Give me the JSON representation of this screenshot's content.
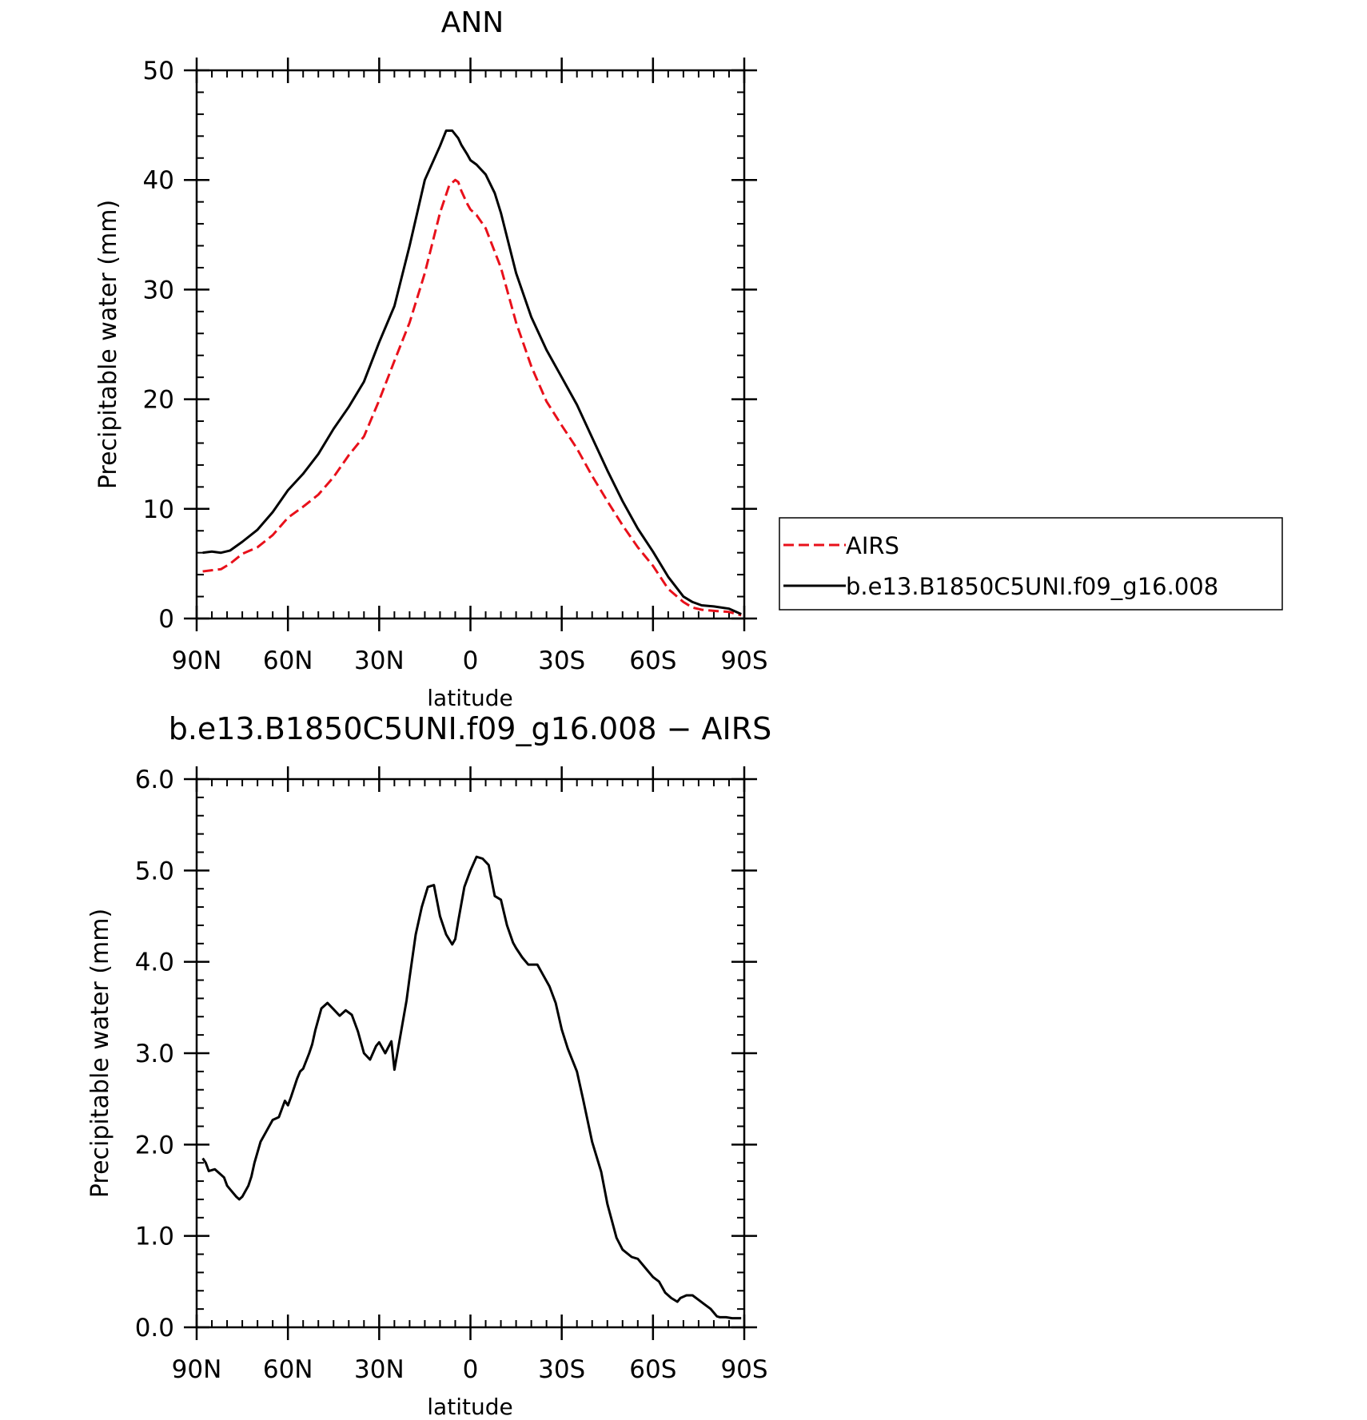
{
  "chart_data": [
    {
      "type": "line",
      "title": "ANN",
      "xlabel": "latitude",
      "ylabel": "Precipitable water (mm)",
      "xlim": [
        90,
        -90
      ],
      "ylim": [
        0,
        50
      ],
      "xticks": [
        90,
        60,
        30,
        0,
        -30,
        -60,
        -90
      ],
      "xtick_labels": [
        "90N",
        "60N",
        "30N",
        "0",
        "30S",
        "60S",
        "90S"
      ],
      "yticks": [
        0,
        10,
        20,
        30,
        40,
        50
      ],
      "ytick_labels": [
        "0",
        "10",
        "20",
        "30",
        "40",
        "50"
      ],
      "grid": false,
      "legend": {
        "placement": "right, outside plot",
        "entries": [
          "AIRS",
          "b.e13.B1850C5UNI.f09_g16.008"
        ]
      },
      "series": [
        {
          "name": "AIRS",
          "color": "#e8101a",
          "dash": true,
          "x": [
            88,
            85,
            82,
            79,
            75,
            70,
            65,
            60,
            55,
            50,
            45,
            40,
            35,
            30,
            25,
            20,
            15,
            10,
            7,
            5,
            4,
            3,
            1,
            0,
            -2,
            -5,
            -10,
            -15,
            -20,
            -25,
            -30,
            -35,
            -40,
            -45,
            -50,
            -55,
            -60,
            -65,
            -70,
            -73,
            -76,
            -80,
            -85,
            -89
          ],
          "values": [
            4.3,
            4.4,
            4.5,
            5.0,
            5.9,
            6.5,
            7.6,
            9.2,
            10.2,
            11.3,
            12.9,
            14.9,
            16.6,
            19.9,
            23.5,
            27.0,
            31.5,
            37.0,
            39.5,
            40.0,
            39.8,
            39.0,
            37.8,
            37.3,
            36.8,
            35.6,
            32.0,
            27.0,
            23.0,
            19.8,
            17.6,
            15.5,
            13.0,
            10.7,
            8.5,
            6.5,
            4.8,
            2.7,
            1.5,
            1.0,
            0.8,
            0.7,
            0.6,
            0.3
          ]
        },
        {
          "name": "b.e13.B1850C5UNI.f09_g16.008",
          "color": "#000000",
          "dash": false,
          "x": [
            88,
            85,
            82,
            79,
            75,
            70,
            65,
            60,
            55,
            50,
            45,
            40,
            35,
            30,
            25,
            20,
            15,
            10,
            8,
            6,
            4,
            3,
            1,
            0,
            -2,
            -5,
            -8,
            -10,
            -15,
            -20,
            -25,
            -30,
            -35,
            -40,
            -45,
            -50,
            -55,
            -60,
            -65,
            -70,
            -73,
            -76,
            -80,
            -85,
            -89
          ],
          "values": [
            6.0,
            6.1,
            6.0,
            6.2,
            7.0,
            8.1,
            9.7,
            11.7,
            13.2,
            15.0,
            17.3,
            19.3,
            21.6,
            25.2,
            28.5,
            34.0,
            40.0,
            43.1,
            44.5,
            44.5,
            43.8,
            43.2,
            42.3,
            41.8,
            41.4,
            40.5,
            38.8,
            37.0,
            31.5,
            27.5,
            24.5,
            22.0,
            19.5,
            16.5,
            13.5,
            10.7,
            8.2,
            6.1,
            3.8,
            2.0,
            1.5,
            1.2,
            1.1,
            0.9,
            0.4
          ]
        }
      ]
    },
    {
      "type": "line",
      "title": "b.e13.B1850C5UNI.f09_g16.008 − AIRS",
      "xlabel": "latitude",
      "ylabel": "Precipitable water (mm)",
      "xlim": [
        90,
        -90
      ],
      "ylim": [
        0,
        6
      ],
      "xticks": [
        90,
        60,
        30,
        0,
        -30,
        -60,
        -90
      ],
      "xtick_labels": [
        "90N",
        "60N",
        "30N",
        "0",
        "30S",
        "60S",
        "90S"
      ],
      "yticks": [
        0,
        1,
        2,
        3,
        4,
        5,
        6
      ],
      "ytick_labels": [
        "0.0",
        "1.0",
        "2.0",
        "3.0",
        "4.0",
        "5.0",
        "6.0"
      ],
      "grid": false,
      "series": [
        {
          "color": "#000000",
          "dash": false,
          "x": [
            88,
            87,
            86,
            85,
            84,
            81,
            80,
            79,
            77,
            76,
            75,
            73,
            72,
            71,
            69,
            67,
            65,
            63,
            61,
            60,
            59,
            57,
            56,
            55,
            53,
            52,
            51,
            49,
            47,
            45,
            43,
            41,
            39,
            37,
            35,
            33,
            31,
            30,
            28,
            26,
            25,
            23,
            21,
            20,
            18,
            16,
            14,
            12,
            10,
            8,
            6,
            5,
            4,
            2,
            0,
            -2,
            -4,
            -6,
            -8,
            -10,
            -12,
            -14,
            -15,
            -17,
            -19,
            -22,
            -24,
            -26,
            -28,
            -30,
            -32,
            -35,
            -37,
            -40,
            -43,
            -45,
            -48,
            -50,
            -53,
            -55,
            -58,
            -60,
            -62,
            -64,
            -66,
            -68,
            -69,
            -71,
            -73,
            -75,
            -77,
            -79,
            -81,
            -82,
            -84,
            -86,
            -87,
            -89
          ],
          "values": [
            1.85,
            1.8,
            1.71,
            1.72,
            1.73,
            1.64,
            1.55,
            1.51,
            1.43,
            1.4,
            1.43,
            1.55,
            1.65,
            1.8,
            2.03,
            2.15,
            2.27,
            2.3,
            2.48,
            2.43,
            2.52,
            2.72,
            2.8,
            2.83,
            3.0,
            3.1,
            3.25,
            3.49,
            3.55,
            3.48,
            3.41,
            3.47,
            3.42,
            3.24,
            3.0,
            2.93,
            3.08,
            3.12,
            3.0,
            3.13,
            2.82,
            3.2,
            3.58,
            3.83,
            4.3,
            4.6,
            4.82,
            4.84,
            4.5,
            4.3,
            4.19,
            4.25,
            4.45,
            4.82,
            5.0,
            5.15,
            5.13,
            5.06,
            4.72,
            4.68,
            4.4,
            4.21,
            4.15,
            4.05,
            3.97,
            3.97,
            3.85,
            3.73,
            3.55,
            3.26,
            3.05,
            2.8,
            2.5,
            2.03,
            1.7,
            1.35,
            0.98,
            0.85,
            0.77,
            0.75,
            0.63,
            0.55,
            0.5,
            0.38,
            0.32,
            0.28,
            0.32,
            0.35,
            0.35,
            0.3,
            0.25,
            0.2,
            0.12,
            0.11,
            0.11,
            0.1,
            0.1,
            0.1
          ]
        }
      ]
    }
  ]
}
